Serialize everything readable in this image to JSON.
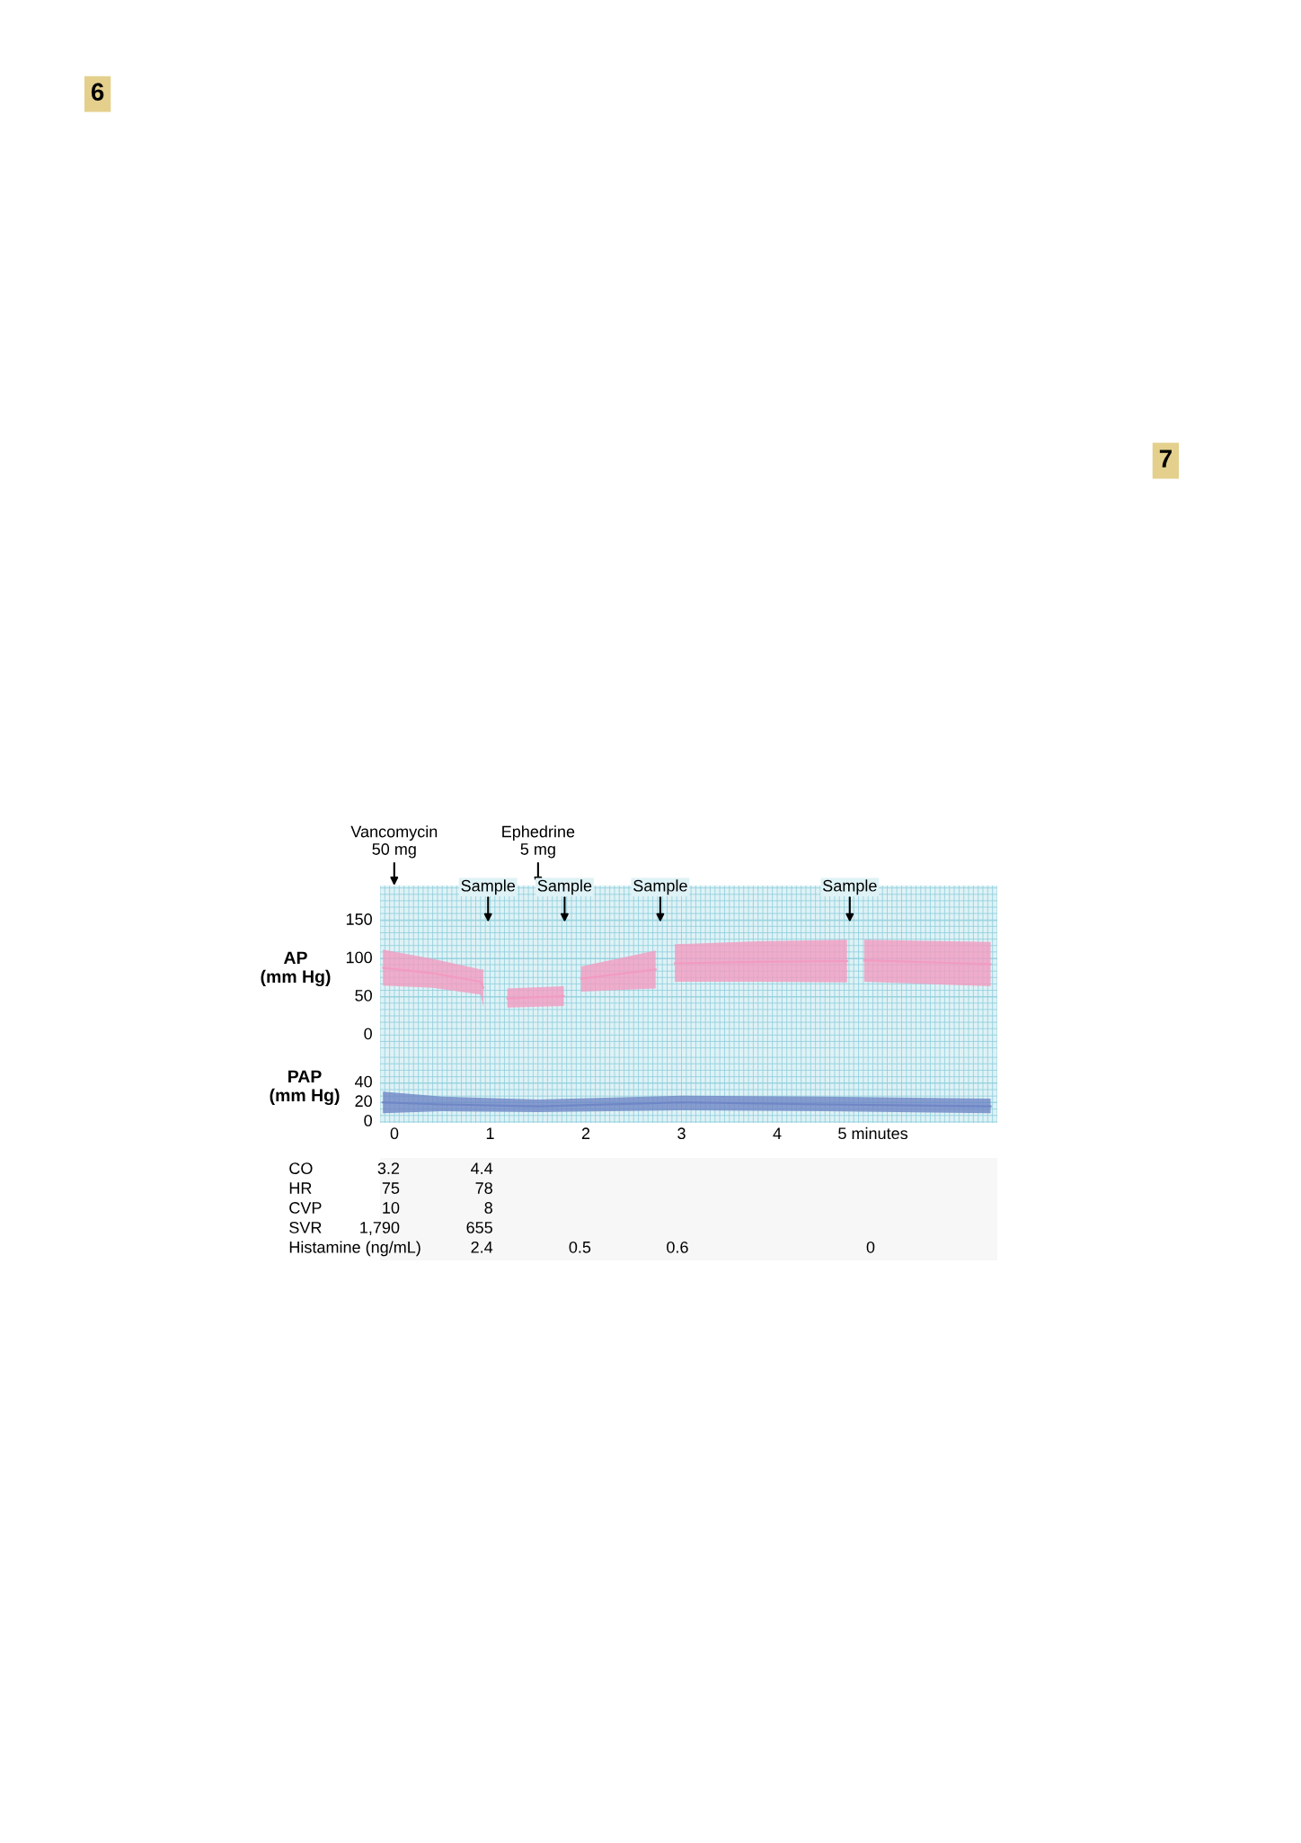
{
  "chart_data": [
    {
      "type": "line",
      "ylabel": "AP\n(mm Hg)",
      "xlim": [
        -0.15,
        6.3
      ],
      "ylim": [
        -22,
        196
      ],
      "yticks": [
        0,
        50,
        100,
        150
      ],
      "tick_labels": "y",
      "grid": true,
      "x": [
        -0.12,
        0.4,
        0.9,
        0.93,
        1.05,
        1.18,
        1.77,
        1.86,
        1.95,
        2.73,
        2.83,
        2.93,
        3.8,
        4.73,
        4.82,
        4.91,
        6.23
      ],
      "series": [
        {
          "color": "#f29bc1",
          "values": [
            88,
            81,
            70,
            62,
            null,
            48,
            51,
            null,
            74,
            86,
            null,
            94,
            96,
            97,
            null,
            98,
            93
          ],
          "upper": [
            112,
            100,
            86,
            86,
            null,
            61,
            64,
            null,
            90,
            111,
            null,
            119,
            123,
            125,
            null,
            125,
            122
          ],
          "lower": [
            65,
            62,
            53,
            37,
            null,
            36,
            38,
            null,
            57,
            61,
            null,
            70,
            70,
            69,
            null,
            70,
            64
          ]
        }
      ],
      "annotations": [
        "6",
        "7",
        "Vancomycin\n50 mg",
        "Ephedrine\n5 mg",
        "Sample",
        "Sample",
        "Sample",
        "Sample"
      ]
    },
    {
      "type": "line",
      "ylabel": "PAP\n(mm Hg)",
      "xlim": [
        -0.15,
        6.3
      ],
      "ylim": [
        -1,
        72
      ],
      "yticks": [
        0,
        20,
        40
      ],
      "xticks": [
        0,
        1,
        2,
        3,
        4,
        {
          "value": 5,
          "label": "5 minutes"
        }
      ],
      "grid": true,
      "x": [
        -0.12,
        0.5,
        1.5,
        3.0,
        4.5,
        6.23
      ],
      "series": [
        {
          "color": "#6f86c6",
          "values": [
            20,
            18,
            16,
            20,
            18,
            16
          ],
          "upper": [
            31,
            26,
            23,
            27,
            26,
            24
          ],
          "lower": [
            9,
            11,
            10,
            12,
            11,
            9
          ]
        }
      ]
    },
    {
      "type": "other",
      "annotations": [
        "CO",
        "3.2",
        "4.4",
        "HR",
        "75",
        "78",
        "CVP",
        "10",
        "8",
        "SVR",
        "1,790",
        "655",
        "Histamine (ng/mL)",
        "2.4",
        "0.5",
        "0.6",
        "0"
      ]
    }
  ]
}
